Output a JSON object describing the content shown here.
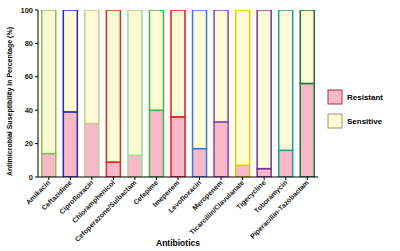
{
  "chart_data": {
    "type": "bar",
    "stacked": true,
    "x_label": "Antibiotics",
    "y_label": "Antimicrobial Suseptibility in Percentage (%)",
    "categories": [
      "Amikacin",
      "Ceftazidime",
      "Ciprofloxacin",
      "Chloramphenicol",
      "Cefoperazone/Sulbactam",
      "Cefepime",
      "Imepenem",
      "Levofloxacin",
      "Meropenem",
      "Ticarcillin/Clavulanate",
      "Tigecycline",
      "Toboramycin",
      "Piperacillin-Tazobactam"
    ],
    "series": [
      {
        "name": "Resistant",
        "color": "#f7b8c8",
        "values": [
          14,
          39,
          32,
          9,
          13,
          40,
          36,
          17,
          33,
          7,
          5,
          16,
          56
        ]
      },
      {
        "name": "Sensitive",
        "color": "#fcfbd6",
        "values": [
          86,
          61,
          68,
          91,
          87,
          60,
          64,
          83,
          67,
          93,
          95,
          84,
          44
        ]
      }
    ],
    "ylim": [
      0,
      100
    ],
    "yticks": [
      0,
      20,
      40,
      60,
      80,
      100
    ],
    "grid": false,
    "legend": "right"
  }
}
